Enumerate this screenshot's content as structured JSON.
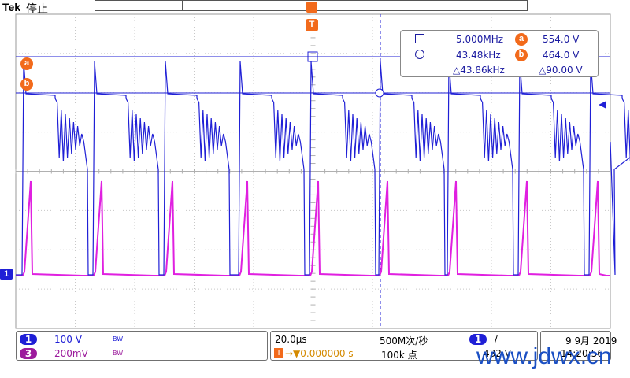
{
  "header": {
    "brand": "Tek",
    "status": "停止"
  },
  "markers": {
    "trigger": "T",
    "cursor_a": "a",
    "cursor_b": "b",
    "ch1": "1"
  },
  "measurements": {
    "row1": {
      "freq": "5.000MHz",
      "val": "554.0 V"
    },
    "row2": {
      "freq": "43.48kHz",
      "val": "464.0 V"
    },
    "row3": {
      "delta_freq": "△43.86kHz",
      "delta_val": "△90.00 V"
    }
  },
  "channels": [
    {
      "number": "1",
      "scale": "100 V",
      "bw": "BW",
      "color": "#1f1fd6"
    },
    {
      "number": "3",
      "scale": "200mV",
      "bw": "BW",
      "color": "#c015c0"
    }
  ],
  "timebase": {
    "scale": "20.0µs",
    "sample_rate": "500M次/秒",
    "delay": "→▼0.000000 s",
    "record_length": "100k 点"
  },
  "trigger": {
    "source": "1",
    "slope": "/",
    "level": "432 V"
  },
  "datetime": {
    "date": "9 9月 2019",
    "time": "14:20:56"
  },
  "watermark": "www.jdwx.cn",
  "colors": {
    "ch1": "#1f1fd6",
    "ch3": "#e020e0",
    "cursor": "#f26a1b",
    "grid": "#c8c8c8"
  }
}
